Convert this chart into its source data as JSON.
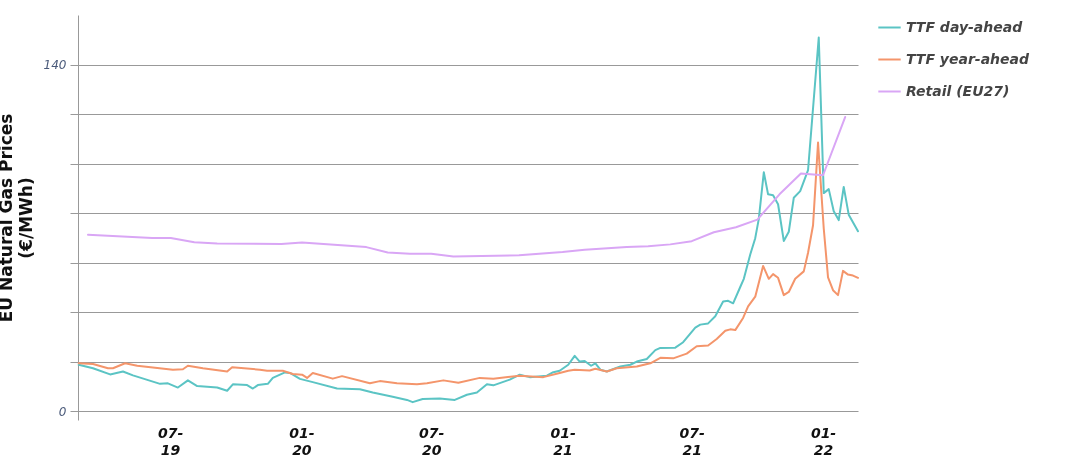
{
  "chart_data": {
    "type": "line",
    "ylabel": "EU Natural Gas Prices (€/MWh)",
    "legend": "right",
    "grid": "y",
    "line_style": "solid",
    "marker": "none",
    "xlim": [
      "2019-02-22",
      "2022-02-19"
    ],
    "xticks": [
      {
        "value": "2019-07-01",
        "label": "07-19"
      },
      {
        "value": "2020-01-01",
        "label": "01-20"
      },
      {
        "value": "2020-07-01",
        "label": "07-20"
      },
      {
        "value": "2021-01-01",
        "label": "01-21"
      },
      {
        "value": "2021-07-01",
        "label": "07-21"
      },
      {
        "value": "2022-01-01",
        "label": "01-22"
      }
    ],
    "ylim": [
      -3.5,
      160
    ],
    "yticks": [
      0,
      {
        "value": 20,
        "label": null
      },
      {
        "value": 40,
        "label": null
      },
      {
        "value": 60,
        "label": null
      },
      {
        "value": 80,
        "label": null
      },
      {
        "value": 100,
        "label": null
      },
      {
        "value": 120,
        "label": null
      },
      140
    ],
    "series": [
      {
        "name": "TTF day-ahead",
        "color": "#5bc4c4",
        "x": [
          "2019-02-23",
          "2019-03-15",
          "2019-04-08",
          "2019-04-26",
          "2019-05-10",
          "2019-06-17",
          "2019-06-28",
          "2019-07-12",
          "2019-07-26",
          "2019-08-08",
          "2019-09-05",
          "2019-09-19",
          "2019-09-27",
          "2019-10-17",
          "2019-10-25",
          "2019-11-01",
          "2019-11-15",
          "2019-11-22",
          "2019-12-09",
          "2019-12-16",
          "2019-12-30",
          "2020-01-17",
          "2020-02-20",
          "2020-03-23",
          "2020-04-10",
          "2020-05-08",
          "2020-05-28",
          "2020-06-05",
          "2020-06-19",
          "2020-07-13",
          "2020-08-03",
          "2020-08-20",
          "2020-09-03",
          "2020-09-17",
          "2020-09-26",
          "2020-10-19",
          "2020-11-02",
          "2020-11-16",
          "2020-12-10",
          "2020-12-19",
          "2020-12-28",
          "2021-01-09",
          "2021-01-18",
          "2021-01-25",
          "2021-02-01",
          "2021-02-10",
          "2021-02-16",
          "2021-02-23",
          "2021-03-04",
          "2021-03-23",
          "2021-04-06",
          "2021-04-15",
          "2021-04-29",
          "2021-05-11",
          "2021-05-18",
          "2021-06-08",
          "2021-06-19",
          "2021-07-06",
          "2021-07-13",
          "2021-07-24",
          "2021-08-03",
          "2021-08-14",
          "2021-08-21",
          "2021-08-28",
          "2021-09-07",
          "2021-09-12",
          "2021-09-21",
          "2021-09-28",
          "2021-10-03",
          "2021-10-10",
          "2021-10-16",
          "2021-10-23",
          "2021-10-30",
          "2021-11-07",
          "2021-11-14",
          "2021-11-21",
          "2021-11-30",
          "2021-12-11",
          "2021-12-26",
          "2022-01-02",
          "2022-01-09",
          "2022-01-16",
          "2022-01-23",
          "2022-01-30",
          "2022-02-06",
          "2022-02-19"
        ],
        "values": [
          18.8,
          17.4,
          14.9,
          16.1,
          14.5,
          11.1,
          11.3,
          9.6,
          12.5,
          10.2,
          9.6,
          8.3,
          10.9,
          10.6,
          9.2,
          10.6,
          11.1,
          13.5,
          15.7,
          15.5,
          13.1,
          11.8,
          9.2,
          8.9,
          7.6,
          5.9,
          4.6,
          3.7,
          5.0,
          5.2,
          4.6,
          6.7,
          7.6,
          10.9,
          10.5,
          12.8,
          14.8,
          13.8,
          14.4,
          15.8,
          16.4,
          18.8,
          22.4,
          20.1,
          20.3,
          18.4,
          19.4,
          16.8,
          16.1,
          18.1,
          18.8,
          20.1,
          21.1,
          24.7,
          25.6,
          25.7,
          27.9,
          33.8,
          35.0,
          35.5,
          38.4,
          44.3,
          44.6,
          43.6,
          50.2,
          53.5,
          63.3,
          69.9,
          77.7,
          96.5,
          87.6,
          87.2,
          83.6,
          68.8,
          72.5,
          86.2,
          88.9,
          97.4,
          150.9,
          88.1,
          89.7,
          80.8,
          77.2,
          90.6,
          79.4,
          72.7
        ]
      },
      {
        "name": "TTF year-ahead",
        "color": "#f4956b",
        "x": [
          "2019-02-23",
          "2019-03-15",
          "2019-04-05",
          "2019-04-12",
          "2019-04-29",
          "2019-05-16",
          "2019-07-05",
          "2019-07-19",
          "2019-07-26",
          "2019-08-16",
          "2019-09-19",
          "2019-09-26",
          "2019-11-04",
          "2019-11-14",
          "2019-12-06",
          "2019-12-20",
          "2020-01-02",
          "2020-01-09",
          "2020-01-17",
          "2020-02-14",
          "2020-02-27",
          "2020-04-06",
          "2020-04-20",
          "2020-05-14",
          "2020-06-11",
          "2020-06-25",
          "2020-07-18",
          "2020-08-08",
          "2020-09-07",
          "2020-09-26",
          "2020-11-02",
          "2020-12-05",
          "2020-12-28",
          "2021-01-09",
          "2021-01-18",
          "2021-02-08",
          "2021-02-16",
          "2021-03-04",
          "2021-03-18",
          "2021-04-15",
          "2021-05-04",
          "2021-05-18",
          "2021-06-05",
          "2021-06-24",
          "2021-07-08",
          "2021-07-24",
          "2021-08-05",
          "2021-08-17",
          "2021-08-24",
          "2021-08-31",
          "2021-09-11",
          "2021-09-18",
          "2021-09-28",
          "2021-10-09",
          "2021-10-17",
          "2021-10-23",
          "2021-10-30",
          "2021-11-07",
          "2021-11-14",
          "2021-11-23",
          "2021-12-05",
          "2021-12-11",
          "2021-12-18",
          "2021-12-25",
          "2022-01-02",
          "2022-01-08",
          "2022-01-15",
          "2022-01-22",
          "2022-01-29",
          "2022-02-05",
          "2022-02-12",
          "2022-02-19"
        ],
        "values": [
          19.4,
          19.1,
          17.4,
          17.4,
          19.4,
          18.4,
          16.8,
          17.0,
          18.4,
          17.4,
          16.1,
          17.8,
          16.8,
          16.4,
          16.4,
          15.1,
          14.8,
          13.5,
          15.5,
          13.2,
          14.2,
          11.3,
          12.2,
          11.3,
          10.9,
          11.3,
          12.5,
          11.5,
          13.5,
          13.2,
          14.4,
          13.8,
          15.5,
          16.4,
          16.8,
          16.5,
          17.2,
          16.1,
          17.4,
          18.1,
          19.4,
          21.6,
          21.4,
          23.3,
          26.3,
          26.6,
          29.2,
          32.5,
          33.1,
          32.8,
          37.7,
          42.4,
          46.3,
          58.7,
          53.5,
          55.4,
          53.9,
          46.9,
          48.2,
          53.5,
          56.5,
          64.0,
          75.1,
          108.5,
          73.8,
          54.1,
          48.9,
          46.9,
          56.7,
          55.2,
          54.8,
          53.9
        ]
      },
      {
        "name": "Retail (EU27)",
        "color": "#d9a6f5",
        "x": [
          "2019-03-08",
          "2019-06-06",
          "2019-07-02",
          "2019-08-04",
          "2019-09-05",
          "2019-12-04",
          "2020-01-02",
          "2020-04-01",
          "2020-05-01",
          "2020-06-01",
          "2020-07-01",
          "2020-08-01",
          "2020-11-01",
          "2021-01-01",
          "2021-02-01",
          "2021-04-01",
          "2021-05-01",
          "2021-06-01",
          "2021-07-01",
          "2021-08-01",
          "2021-09-01",
          "2021-10-01",
          "2021-11-01",
          "2021-12-01",
          "2022-01-01",
          "2022-02-01"
        ],
        "values": [
          71.3,
          70.0,
          70.0,
          68.3,
          67.8,
          67.6,
          68.2,
          66.3,
          64.1,
          63.6,
          63.6,
          62.5,
          63.0,
          64.3,
          65.2,
          66.3,
          66.6,
          67.4,
          68.7,
          72.3,
          74.3,
          77.4,
          87.6,
          96.0,
          95.3,
          118.8
        ]
      }
    ]
  }
}
